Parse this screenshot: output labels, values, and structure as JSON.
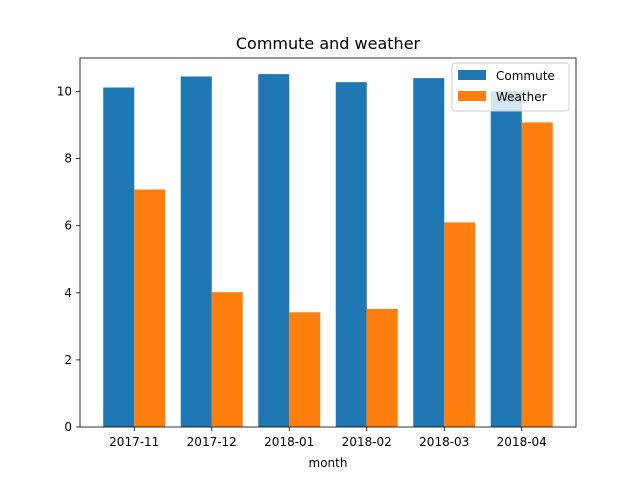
{
  "chart_data": {
    "type": "bar",
    "title": "Commute and weather",
    "xlabel": "month",
    "ylabel": "",
    "categories": [
      "2017-11",
      "2017-12",
      "2018-01",
      "2018-02",
      "2018-03",
      "2018-04"
    ],
    "series": [
      {
        "name": "Commute",
        "color": "#1f77b4",
        "values": [
          10.12,
          10.45,
          10.52,
          10.28,
          10.4,
          10.01
        ]
      },
      {
        "name": "Weather",
        "color": "#ff7f0e",
        "values": [
          7.08,
          4.02,
          3.42,
          3.52,
          6.1,
          9.08
        ]
      }
    ],
    "ylim": [
      0,
      11
    ],
    "yticks": [
      0,
      2,
      4,
      6,
      8,
      10
    ],
    "grid": false,
    "legend_position": "top-right"
  }
}
